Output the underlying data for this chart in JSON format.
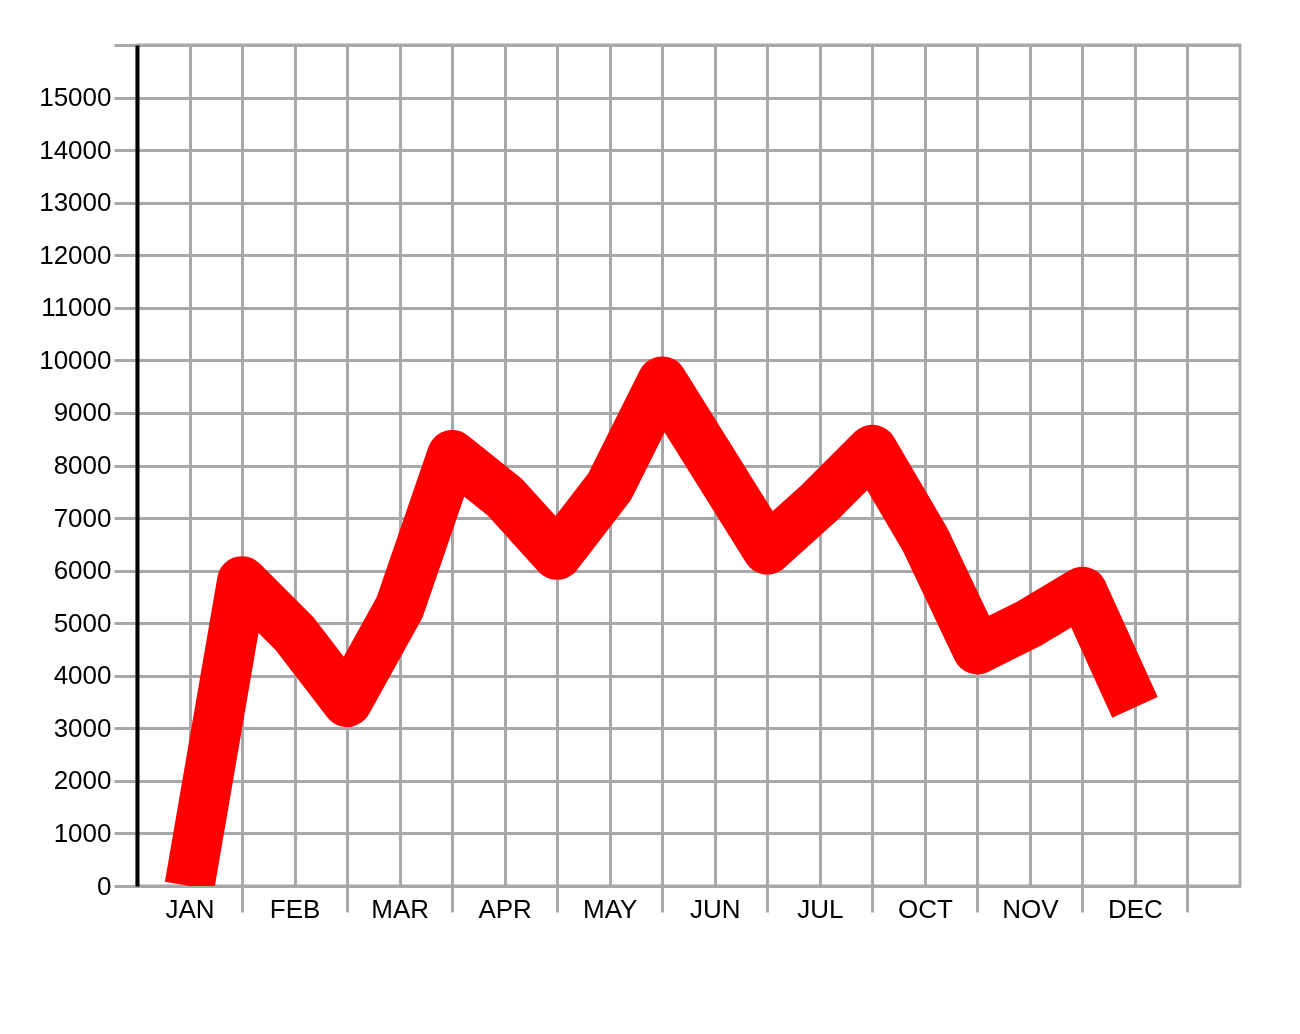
{
  "chart_data": {
    "type": "line",
    "categories": [
      "JAN",
      null,
      "FEB",
      null,
      "MAR",
      null,
      "APR",
      null,
      "MAY",
      null,
      "JUN",
      null,
      "JUL",
      null,
      "OCT",
      null,
      "NOV",
      null,
      "DEC",
      null
    ],
    "series": [
      {
        "color": "#ff0000",
        "values": [
          0,
          5800,
          4800,
          3500,
          5300,
          8200,
          7400,
          6300,
          7600,
          9600,
          8000,
          6400,
          7300,
          8300,
          6600,
          4500,
          5000,
          5600,
          3400,
          null
        ]
      }
    ],
    "ylim": [
      0,
      16000
    ],
    "yticks": [
      0,
      1000,
      2000,
      3000,
      4000,
      5000,
      6000,
      7000,
      8000,
      9000,
      10000,
      11000,
      12000,
      13000,
      14000,
      15000,
      {
        "value": 16000,
        "label": null
      }
    ],
    "grid": true,
    "line_style": "solid"
  }
}
